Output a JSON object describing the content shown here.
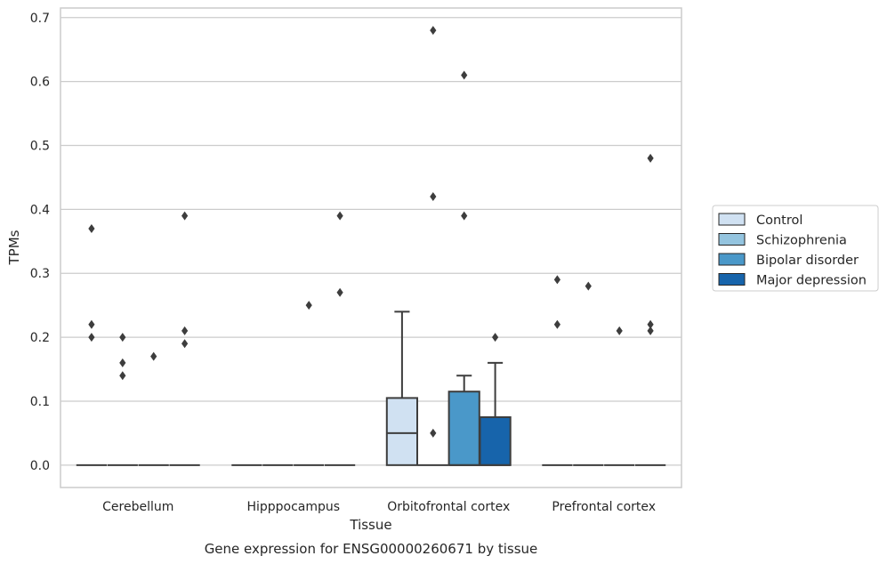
{
  "chart_data": {
    "type": "box",
    "xlabel": "Tissue",
    "ylabel": "TPMs",
    "caption": "Gene expression for ENSG00000260671 by tissue",
    "categories": [
      "Cerebellum",
      "Hipppocampus",
      "Orbitofrontal cortex",
      "Prefrontal cortex"
    ],
    "hue_order": [
      "Control",
      "Schizophrenia",
      "Bipolar disorder",
      "Major depression"
    ],
    "colors": {
      "Control": "#d0e1f2",
      "Schizophrenia": "#94c4df",
      "Bipolar disorder": "#4a98c9",
      "Major depression": "#1764ab"
    },
    "ylim": [
      -0.035,
      0.715
    ],
    "yticks": [
      0.0,
      0.1,
      0.2,
      0.3,
      0.4,
      0.5,
      0.6,
      0.7
    ],
    "ytick_labels": [
      "0.0",
      "0.1",
      "0.2",
      "0.3",
      "0.4",
      "0.5",
      "0.6",
      "0.7"
    ],
    "grid": true,
    "legend": {
      "position": "outside-right",
      "entries": [
        "Control",
        "Schizophrenia",
        "Bipolar disorder",
        "Major depression"
      ]
    },
    "boxes": [
      {
        "category": "Cerebellum",
        "group": "Control",
        "q1": 0,
        "median": 0,
        "q3": 0,
        "whisker_low": 0,
        "whisker_high": 0,
        "outliers": [
          0.37,
          0.22,
          0.2
        ]
      },
      {
        "category": "Cerebellum",
        "group": "Schizophrenia",
        "q1": 0,
        "median": 0,
        "q3": 0,
        "whisker_low": 0,
        "whisker_high": 0,
        "outliers": [
          0.2,
          0.16,
          0.14
        ]
      },
      {
        "category": "Cerebellum",
        "group": "Bipolar disorder",
        "q1": 0,
        "median": 0,
        "q3": 0,
        "whisker_low": 0,
        "whisker_high": 0,
        "outliers": [
          0.17
        ]
      },
      {
        "category": "Cerebellum",
        "group": "Major depression",
        "q1": 0,
        "median": 0,
        "q3": 0,
        "whisker_low": 0,
        "whisker_high": 0,
        "outliers": [
          0.39,
          0.21,
          0.19
        ]
      },
      {
        "category": "Hipppocampus",
        "group": "Control",
        "q1": 0,
        "median": 0,
        "q3": 0,
        "whisker_low": 0,
        "whisker_high": 0,
        "outliers": []
      },
      {
        "category": "Hipppocampus",
        "group": "Schizophrenia",
        "q1": 0,
        "median": 0,
        "q3": 0,
        "whisker_low": 0,
        "whisker_high": 0,
        "outliers": []
      },
      {
        "category": "Hipppocampus",
        "group": "Bipolar disorder",
        "q1": 0,
        "median": 0,
        "q3": 0,
        "whisker_low": 0,
        "whisker_high": 0,
        "outliers": [
          0.25
        ]
      },
      {
        "category": "Hipppocampus",
        "group": "Major depression",
        "q1": 0,
        "median": 0,
        "q3": 0,
        "whisker_low": 0,
        "whisker_high": 0,
        "outliers": [
          0.39,
          0.27
        ]
      },
      {
        "category": "Orbitofrontal cortex",
        "group": "Control",
        "q1": 0,
        "median": 0.05,
        "q3": 0.105,
        "whisker_low": 0,
        "whisker_high": 0.24,
        "outliers": []
      },
      {
        "category": "Orbitofrontal cortex",
        "group": "Schizophrenia",
        "q1": 0,
        "median": 0,
        "q3": 0,
        "whisker_low": 0,
        "whisker_high": 0,
        "outliers": [
          0.68,
          0.42,
          0.05
        ]
      },
      {
        "category": "Orbitofrontal cortex",
        "group": "Bipolar disorder",
        "q1": 0,
        "median": 0,
        "q3": 0.115,
        "whisker_low": 0,
        "whisker_high": 0.14,
        "outliers": [
          0.61,
          0.39
        ]
      },
      {
        "category": "Orbitofrontal cortex",
        "group": "Major depression",
        "q1": 0,
        "median": 0,
        "q3": 0.075,
        "whisker_low": 0,
        "whisker_high": 0.16,
        "outliers": [
          0.2
        ]
      },
      {
        "category": "Prefrontal cortex",
        "group": "Control",
        "q1": 0,
        "median": 0,
        "q3": 0,
        "whisker_low": 0,
        "whisker_high": 0,
        "outliers": [
          0.29,
          0.22
        ]
      },
      {
        "category": "Prefrontal cortex",
        "group": "Schizophrenia",
        "q1": 0,
        "median": 0,
        "q3": 0,
        "whisker_low": 0,
        "whisker_high": 0,
        "outliers": [
          0.28
        ]
      },
      {
        "category": "Prefrontal cortex",
        "group": "Bipolar disorder",
        "q1": 0,
        "median": 0,
        "q3": 0,
        "whisker_low": 0,
        "whisker_high": 0,
        "outliers": [
          0.21
        ]
      },
      {
        "category": "Prefrontal cortex",
        "group": "Major depression",
        "q1": 0,
        "median": 0,
        "q3": 0,
        "whisker_low": 0,
        "whisker_high": 0,
        "outliers": [
          0.48,
          0.22,
          0.21
        ]
      }
    ]
  }
}
